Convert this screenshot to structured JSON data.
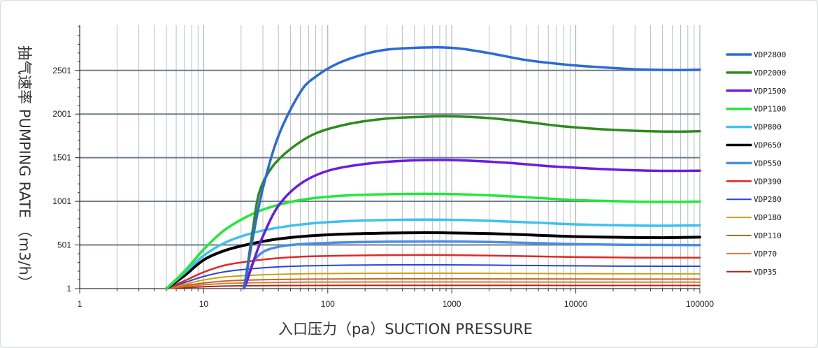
{
  "chart_data": {
    "type": "line",
    "xlabel": "入口压力（pa）SUCTION PRESSURE",
    "ylabel": "抽气速率 PUMPING RATE （m3/h）",
    "x_scale": "log",
    "xlim": [
      1,
      100000
    ],
    "ylim": [
      1,
      3020
    ],
    "grid": true,
    "legend_position": "right",
    "x_ticks": [
      {
        "value": 1,
        "label": "1"
      },
      {
        "value": 10,
        "label": "10"
      },
      {
        "value": 100,
        "label": "100"
      },
      {
        "value": 1000,
        "label": "1000"
      },
      {
        "value": 10000,
        "label": "10000"
      },
      {
        "value": 100000,
        "label": "100000"
      }
    ],
    "y_ticks": [
      {
        "value": 1,
        "label": "1"
      },
      {
        "value": 501,
        "label": "501"
      },
      {
        "value": 1001,
        "label": "1001"
      },
      {
        "value": 1501,
        "label": "1501"
      },
      {
        "value": 2001,
        "label": "2001"
      },
      {
        "value": 2501,
        "label": "2501"
      }
    ],
    "series": [
      {
        "name": "VDP2800",
        "color": "#2b6ad8",
        "width": 3.5,
        "x": [
          21,
          22,
          25,
          30,
          40,
          60,
          80,
          120,
          200,
          300,
          500,
          800,
          1200,
          2000,
          4000,
          8000,
          15000,
          30000,
          60000,
          100000
        ],
        "y": [
          5,
          150,
          600,
          1150,
          1750,
          2250,
          2430,
          2580,
          2690,
          2740,
          2760,
          2765,
          2750,
          2700,
          2620,
          2570,
          2540,
          2515,
          2505,
          2510
        ]
      },
      {
        "name": "VDP2000",
        "color": "#2e8b1e",
        "width": 3.5,
        "x": [
          21,
          22,
          25,
          28,
          35,
          50,
          80,
          150,
          300,
          600,
          1000,
          2000,
          4000,
          8000,
          15000,
          30000,
          60000,
          100000
        ],
        "y": [
          5,
          150,
          700,
          1100,
          1380,
          1600,
          1780,
          1890,
          1950,
          1970,
          1975,
          1955,
          1910,
          1860,
          1830,
          1810,
          1800,
          1805
        ]
      },
      {
        "name": "VDP1500",
        "color": "#6a1de0",
        "width": 3.5,
        "x": [
          21,
          22,
          25,
          30,
          40,
          60,
          100,
          200,
          400,
          800,
          1500,
          3000,
          6000,
          12000,
          25000,
          50000,
          100000
        ],
        "y": [
          5,
          60,
          300,
          600,
          950,
          1200,
          1350,
          1430,
          1465,
          1475,
          1465,
          1440,
          1405,
          1380,
          1360,
          1350,
          1352
        ]
      },
      {
        "name": "VDP1100",
        "color": "#22e83a",
        "width": 3.5,
        "x": [
          5,
          7,
          10,
          15,
          25,
          40,
          70,
          150,
          400,
          900,
          2000,
          5000,
          10000,
          25000,
          50000,
          100000
        ],
        "y": [
          1,
          200,
          450,
          680,
          860,
          960,
          1030,
          1070,
          1085,
          1085,
          1070,
          1040,
          1015,
          1000,
          995,
          998
        ]
      },
      {
        "name": "VDP800",
        "color": "#3ec1f0",
        "width": 3.5,
        "x": [
          5,
          7,
          10,
          15,
          25,
          40,
          70,
          150,
          400,
          900,
          2000,
          5000,
          10000,
          25000,
          50000,
          100000
        ],
        "y": [
          1,
          180,
          380,
          530,
          640,
          700,
          745,
          775,
          790,
          790,
          778,
          755,
          737,
          725,
          722,
          725
        ]
      },
      {
        "name": "VDP650",
        "color": "#000000",
        "width": 4,
        "x": [
          5,
          7,
          10,
          15,
          25,
          40,
          70,
          150,
          400,
          900,
          2000,
          5000,
          10000,
          25000,
          50000,
          100000
        ],
        "y": [
          1,
          150,
          330,
          440,
          520,
          570,
          605,
          628,
          640,
          640,
          632,
          612,
          597,
          588,
          585,
          590
        ]
      },
      {
        "name": "VDP550",
        "color": "#4a8ee6",
        "width": 3.5,
        "x": [
          21,
          22,
          25,
          30,
          40,
          60,
          100,
          200,
          500,
          1000,
          2000,
          5000,
          10000,
          30000,
          100000
        ],
        "y": [
          5,
          80,
          300,
          420,
          480,
          510,
          525,
          535,
          540,
          540,
          535,
          522,
          510,
          502,
          500
        ]
      },
      {
        "name": "VDP390",
        "color": "#e32626",
        "width": 2.5,
        "x": [
          5,
          7,
          10,
          15,
          25,
          40,
          70,
          150,
          400,
          900,
          2000,
          5000,
          10000,
          30000,
          100000
        ],
        "y": [
          1,
          90,
          190,
          270,
          320,
          350,
          370,
          380,
          385,
          385,
          380,
          370,
          362,
          356,
          355
        ]
      },
      {
        "name": "VDP280",
        "color": "#2845d6",
        "width": 2,
        "x": [
          5,
          7,
          10,
          15,
          25,
          40,
          70,
          150,
          400,
          900,
          2000,
          5000,
          10000,
          30000,
          100000
        ],
        "y": [
          1,
          70,
          140,
          195,
          230,
          250,
          262,
          270,
          273,
          273,
          270,
          265,
          262,
          258,
          257
        ]
      },
      {
        "name": "VDP180",
        "color": "#c9a115",
        "width": 2,
        "x": [
          5,
          7,
          10,
          15,
          25,
          40,
          70,
          150,
          400,
          1000,
          3000,
          10000,
          100000
        ],
        "y": [
          1,
          50,
          100,
          135,
          155,
          165,
          172,
          175,
          177,
          177,
          175,
          172,
          170
        ]
      },
      {
        "name": "VDP110",
        "color": "#c8641e",
        "width": 2,
        "x": [
          5,
          7,
          10,
          15,
          25,
          40,
          70,
          150,
          400,
          1000,
          3000,
          10000,
          100000
        ],
        "y": [
          1,
          35,
          65,
          88,
          100,
          106,
          110,
          112,
          113,
          113,
          112,
          111,
          110
        ]
      },
      {
        "name": "VDP70",
        "color": "#d97a3c",
        "width": 2,
        "x": [
          5,
          7,
          10,
          15,
          25,
          40,
          70,
          150,
          400,
          1000,
          3000,
          10000,
          100000
        ],
        "y": [
          1,
          25,
          45,
          60,
          68,
          72,
          75,
          76,
          77,
          77,
          76,
          75,
          75
        ]
      },
      {
        "name": "VDP35",
        "color": "#a52a17",
        "width": 2,
        "x": [
          5,
          7,
          10,
          15,
          25,
          40,
          70,
          150,
          400,
          1000,
          3000,
          10000,
          100000
        ],
        "y": [
          1,
          12,
          22,
          30,
          34,
          36,
          37,
          38,
          38,
          38,
          38,
          37,
          37
        ]
      }
    ]
  }
}
